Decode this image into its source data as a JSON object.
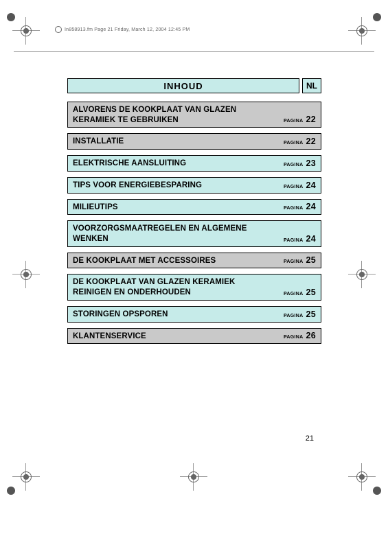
{
  "meta": {
    "header": "In858913.fm  Page 21  Friday, March 12, 2004  12:45 PM"
  },
  "title": {
    "text": "INHOUD",
    "lang": "NL"
  },
  "page_number": "21",
  "page_label": "PAGINA",
  "colors": {
    "cyan": "#c6ebe9",
    "gray": "#c9c9c9",
    "border": "#000000"
  },
  "rows": [
    {
      "title": "ALVORENS DE KOOKPLAAT VAN GLAZEN KERAMIEK TE GEBRUIKEN",
      "page": "22",
      "bg": "gray"
    },
    {
      "title": "INSTALLATIE",
      "page": "22",
      "bg": "gray"
    },
    {
      "title": "ELEKTRISCHE AANSLUITING",
      "page": "23",
      "bg": "cyan"
    },
    {
      "title": "TIPS VOOR ENERGIEBESPARING",
      "page": "24",
      "bg": "cyan"
    },
    {
      "title": "MILIEUTIPS",
      "page": "24",
      "bg": "cyan"
    },
    {
      "title": "VOORZORGSMAATREGELEN EN ALGEMENE WENKEN",
      "page": "24",
      "bg": "cyan"
    },
    {
      "title": "DE KOOKPLAAT MET ACCESSOIRES",
      "page": "25",
      "bg": "gray"
    },
    {
      "title": "DE KOOKPLAAT VAN GLAZEN KERAMIEK REINIGEN EN ONDERHOUDEN",
      "page": "25",
      "bg": "cyan"
    },
    {
      "title": "STORINGEN OPSPOREN",
      "page": "25",
      "bg": "cyan"
    },
    {
      "title": "KLANTENSERVICE",
      "page": "26",
      "bg": "gray"
    }
  ]
}
